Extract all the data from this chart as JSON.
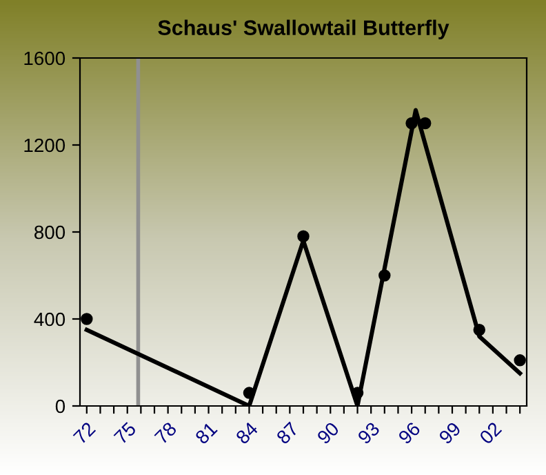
{
  "chart_data": {
    "type": "scatter",
    "title": "Schaus' Swallowtail Butterfly",
    "xlim": [
      1971.5,
      2004.5
    ],
    "xticks": [
      {
        "value": 1972,
        "label": "72"
      },
      {
        "value": 1973,
        "label": null
      },
      {
        "value": 1974,
        "label": null
      },
      {
        "value": 1975,
        "label": "75"
      },
      {
        "value": 1976,
        "label": null
      },
      {
        "value": 1977,
        "label": null
      },
      {
        "value": 1978,
        "label": "78"
      },
      {
        "value": 1979,
        "label": null
      },
      {
        "value": 1980,
        "label": null
      },
      {
        "value": 1981,
        "label": "81"
      },
      {
        "value": 1982,
        "label": null
      },
      {
        "value": 1983,
        "label": null
      },
      {
        "value": 1984,
        "label": "84"
      },
      {
        "value": 1985,
        "label": null
      },
      {
        "value": 1986,
        "label": null
      },
      {
        "value": 1987,
        "label": "87"
      },
      {
        "value": 1988,
        "label": null
      },
      {
        "value": 1989,
        "label": null
      },
      {
        "value": 1990,
        "label": "90"
      },
      {
        "value": 1991,
        "label": null
      },
      {
        "value": 1992,
        "label": null
      },
      {
        "value": 1993,
        "label": "93"
      },
      {
        "value": 1994,
        "label": null
      },
      {
        "value": 1995,
        "label": null
      },
      {
        "value": 1996,
        "label": "96"
      },
      {
        "value": 1997,
        "label": null
      },
      {
        "value": 1998,
        "label": null
      },
      {
        "value": 1999,
        "label": "99"
      },
      {
        "value": 2000,
        "label": null
      },
      {
        "value": 2001,
        "label": null
      },
      {
        "value": 2002,
        "label": "02"
      },
      {
        "value": 2003,
        "label": null
      },
      {
        "value": 2004,
        "label": null
      }
    ],
    "ylim": [
      0,
      1600
    ],
    "yticks": [
      0,
      400,
      800,
      1200,
      1600
    ],
    "grid": false,
    "legend": false,
    "ref_lines": [
      {
        "axis": "x",
        "value": 1975.8,
        "color": "#909090"
      }
    ],
    "series": [
      {
        "color": "#000000",
        "marker": "circle",
        "x": [
          1972,
          1984,
          1988,
          1992,
          1994,
          1996,
          1997,
          2001,
          2004
        ],
        "values": [
          400,
          60,
          780,
          60,
          600,
          1300,
          1300,
          350,
          210
        ]
      },
      {
        "type": "line",
        "color": "#000000",
        "marker": "none",
        "line_style": "solid",
        "x": [
          1972,
          1984,
          1988,
          1992,
          1996.3,
          2001,
          2004
        ],
        "values": [
          350,
          0,
          760,
          0,
          1360,
          320,
          150
        ]
      }
    ]
  }
}
